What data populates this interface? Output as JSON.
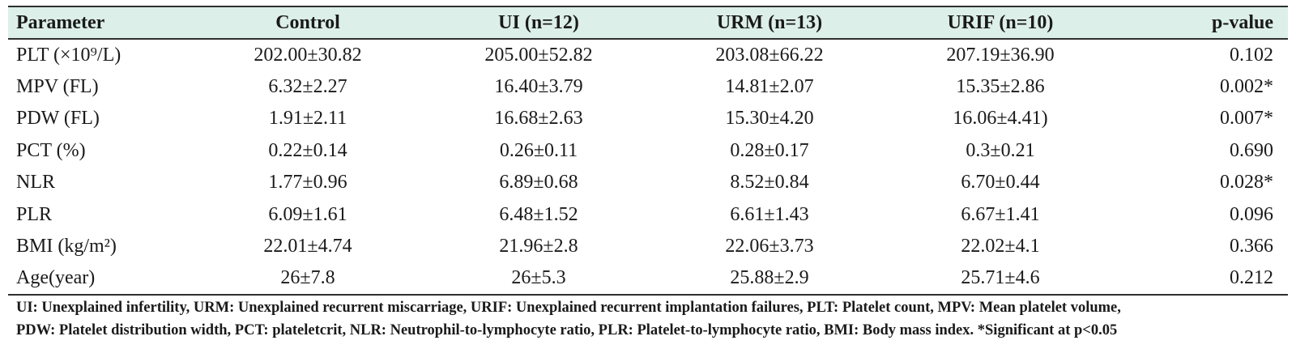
{
  "table": {
    "headers": [
      "Parameter",
      "Control",
      "UI (n=12)",
      "URM (n=13)",
      "URIF (n=10)",
      "p-value"
    ],
    "rows": [
      [
        "PLT (×10⁹/L)",
        "202.00±30.82",
        "205.00±52.82",
        "203.08±66.22",
        "207.19±36.90",
        "0.102"
      ],
      [
        "MPV (FL)",
        "6.32±2.27",
        "16.40±3.79",
        "14.81±2.07",
        "15.35±2.86",
        "0.002*"
      ],
      [
        "PDW (FL)",
        "1.91±2.11",
        "16.68±2.63",
        "15.30±4.20",
        "16.06±4.41)",
        "0.007*"
      ],
      [
        "PCT (%)",
        "0.22±0.14",
        "0.26±0.11",
        "0.28±0.17",
        "0.3±0.21",
        "0.690"
      ],
      [
        "NLR",
        "1.77±0.96",
        "6.89±0.68",
        "8.52±0.84",
        "6.70±0.44",
        "0.028*"
      ],
      [
        "PLR",
        "6.09±1.61",
        "6.48±1.52",
        "6.61±1.43",
        "6.67±1.41",
        "0.096"
      ],
      [
        "BMI (kg/m²)",
        "22.01±4.74",
        "21.96±2.8",
        "22.06±3.73",
        "22.02±4.1",
        "0.366"
      ],
      [
        "Age(year)",
        "26±7.8",
        "26±5.3",
        "25.88±2.9",
        "25.71±4.6",
        "0.212"
      ]
    ]
  },
  "footnote": {
    "line1": "UI: Unexplained infertility, URM: Unexplained recurrent miscarriage, URIF: Unexplained recurrent implantation failures, PLT: Platelet count, MPV: Mean platelet volume,",
    "line2": "PDW: Platelet distribution width, PCT: plateletcrit, NLR: Neutrophil-to-lymphocyte ratio, PLR: Platelet-to-lymphocyte ratio, BMI: Body mass index. *Significant at p<0.05"
  },
  "colors": {
    "header_background": "#dcefe9",
    "rule": "#2f2f2f",
    "text": "#1a1a1a"
  }
}
